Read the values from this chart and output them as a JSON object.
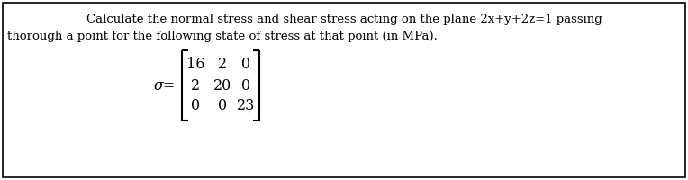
{
  "title_line1": "Calculate the normal stress and shear stress acting on the plane 2x+y+2z=1 passing",
  "title_line2": "thorough a point for the following state of stress at that point (in MPa).",
  "sigma_label": "σ=",
  "matrix": [
    [
      "16",
      "2",
      "0"
    ],
    [
      "2",
      "20",
      "0"
    ],
    [
      "0",
      "0",
      "23"
    ]
  ],
  "bg_color": "#ffffff",
  "text_color": "#000000",
  "border_color": "#000000",
  "font_size_title": 9.5,
  "font_size_matrix": 11.5,
  "fig_width": 7.64,
  "fig_height": 2.0,
  "dpi": 100
}
